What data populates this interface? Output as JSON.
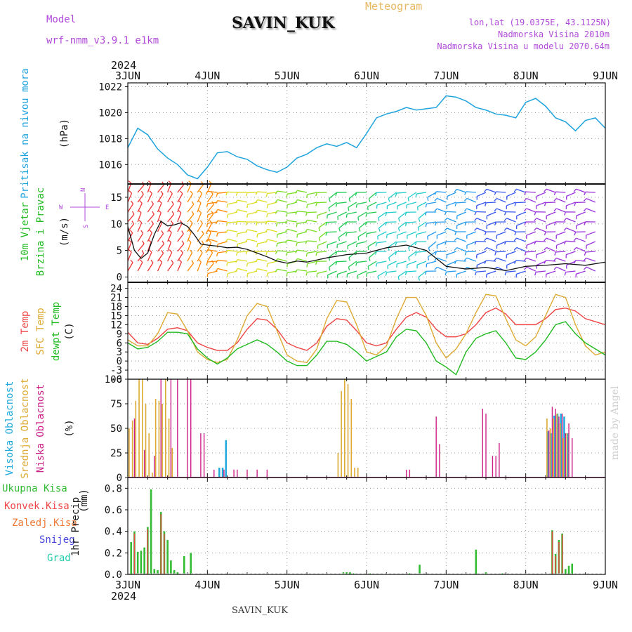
{
  "header": {
    "model_label": "Model",
    "model_name": "wrf-nmm_v3.9.1  e1km",
    "station": "SAVIN_KUK",
    "meteogram": "Meteogram",
    "lonlat": "lon,lat (19.0375E, 43.1125N)",
    "elevation": "Nadmorska Visina 2010m",
    "model_elevation": "Nadmorska Visina u modelu 2070.64m"
  },
  "footer": {
    "station": "SAVIN_KUK",
    "credit": "made by Angel"
  },
  "colors": {
    "pressure": "#1ea3dd",
    "wind_label": "#22bb22",
    "temp": "#ee4444",
    "sfc": "#ddaa33",
    "dewpt": "#22bb22",
    "high": "#22aadd",
    "mid": "#ddaa33",
    "low": "#cc2288",
    "precip": "#33bb33",
    "conv": "#ee4444",
    "frz": "#ee7733",
    "snow": "#4444dd",
    "hail": "#22ccaa",
    "header_purple": "#b04ad8",
    "title_orange": "#e8b860"
  },
  "chart_data": [
    {
      "type": "line",
      "panel": "pressure",
      "ylabel_main": "Pritisak na nivou mora",
      "unit": "(hPa)",
      "ylim": [
        1014.5,
        1022.3
      ],
      "yticks": [
        1016,
        1018,
        1020,
        1022
      ],
      "year": "2024",
      "xticks": [
        "3JUN",
        "4JUN",
        "5JUN",
        "6JUN",
        "7JUN",
        "8JUN",
        "9JUN"
      ],
      "x_hours": [
        0,
        3,
        6,
        9,
        12,
        15,
        18,
        21,
        24,
        27,
        30,
        33,
        36,
        39,
        42,
        45,
        48,
        51,
        54,
        57,
        60,
        63,
        66,
        69,
        72,
        75,
        78,
        81,
        84,
        87,
        90,
        93,
        96,
        99,
        102,
        105,
        108,
        111,
        114,
        117,
        120,
        123,
        126,
        129,
        132,
        135,
        138,
        141,
        144
      ],
      "values": [
        1017.3,
        1018.8,
        1018.3,
        1017.2,
        1016.5,
        1016.0,
        1015.2,
        1014.9,
        1015.8,
        1016.9,
        1017.0,
        1016.6,
        1016.4,
        1015.9,
        1015.6,
        1015.4,
        1015.8,
        1016.5,
        1016.8,
        1017.3,
        1017.6,
        1017.4,
        1017.7,
        1017.3,
        1018.4,
        1019.6,
        1019.9,
        1020.1,
        1020.4,
        1020.2,
        1020.3,
        1020.4,
        1021.3,
        1021.2,
        1020.9,
        1020.4,
        1020.2,
        1019.9,
        1019.8,
        1019.6,
        1020.8,
        1021.1,
        1020.5,
        1019.6,
        1019.3,
        1018.6,
        1019.4,
        1019.6,
        1018.8
      ]
    },
    {
      "type": "line",
      "panel": "wind",
      "ylabel_main": "10m Vjetar",
      "ylabel_sub": "Brzina i Pravac",
      "unit": "(m/s)",
      "compass": {
        "north": "N",
        "west": "W",
        "east": "E",
        "south": "S"
      },
      "ylim": [
        -1,
        17.5
      ],
      "yticks": [
        0,
        5,
        10,
        15
      ],
      "x_hours": [
        0,
        2,
        4,
        6,
        8,
        10,
        12,
        14,
        16,
        18,
        20,
        22,
        24,
        27,
        30,
        33,
        36,
        39,
        42,
        45,
        48,
        51,
        54,
        57,
        60,
        66,
        72,
        78,
        84,
        90,
        96,
        102,
        108,
        114,
        120,
        126,
        132,
        138,
        144
      ],
      "values": [
        9.5,
        5.0,
        3.5,
        4.5,
        8.0,
        10.5,
        9.6,
        9.8,
        10.2,
        9.5,
        8.0,
        6.2,
        6.0,
        5.8,
        5.5,
        5.6,
        5.2,
        4.5,
        3.8,
        3.0,
        2.6,
        3.0,
        2.8,
        3.2,
        3.6,
        4.2,
        4.5,
        5.5,
        6.0,
        5.0,
        2.0,
        1.5,
        1.8,
        1.2,
        2.0,
        2.2,
        2.5,
        2.2,
        2.8
      ]
    },
    {
      "type": "line",
      "panel": "temperature",
      "series_labels": [
        "2m Temp",
        "SFC Temp",
        "dewpt Temp"
      ],
      "unit": "(C)",
      "ylim": [
        -6,
        26
      ],
      "yticks": [
        -6,
        -3,
        0,
        3,
        6,
        9,
        12,
        15,
        18,
        21,
        24
      ],
      "x_hours": [
        0,
        3,
        6,
        9,
        12,
        15,
        18,
        21,
        24,
        27,
        30,
        33,
        36,
        39,
        42,
        45,
        48,
        51,
        54,
        57,
        60,
        63,
        66,
        69,
        72,
        75,
        78,
        81,
        84,
        87,
        90,
        93,
        96,
        99,
        102,
        105,
        108,
        111,
        114,
        117,
        120,
        123,
        126,
        129,
        132,
        135,
        138,
        141,
        144
      ],
      "series": [
        {
          "name": "2m Temp",
          "values": [
            9.5,
            6,
            5.5,
            7.5,
            10.5,
            11,
            10,
            6,
            4.5,
            3.5,
            3.5,
            6,
            10.5,
            14,
            13.5,
            10.5,
            6,
            4.5,
            3.5,
            6,
            11.5,
            14,
            13.5,
            10,
            6,
            5,
            6,
            10.5,
            14.5,
            16,
            14.5,
            10.5,
            8,
            8,
            9,
            12,
            16,
            17.5,
            15.5,
            12,
            12,
            12,
            14,
            17,
            17.5,
            16.5,
            14,
            13,
            12
          ]
        },
        {
          "name": "SFC Temp",
          "values": [
            7,
            5,
            5,
            9,
            16,
            15.5,
            10,
            3,
            0.5,
            -0.5,
            0.5,
            7,
            15,
            19,
            18,
            10,
            2,
            0,
            -0.5,
            4,
            14,
            20,
            19.5,
            12,
            3,
            2,
            5,
            14,
            21,
            21,
            15,
            6,
            1,
            4,
            9,
            16,
            22,
            21.5,
            14,
            7,
            5,
            8,
            15,
            22,
            21,
            12,
            5,
            2,
            3
          ]
        },
        {
          "name": "dewpt Temp",
          "values": [
            6,
            4,
            4.5,
            6.5,
            9.5,
            9.5,
            9,
            4,
            1,
            -1,
            1,
            4,
            5.5,
            7,
            5.5,
            3,
            0,
            -1.5,
            -1.5,
            2,
            6.5,
            6.5,
            5.5,
            3,
            0,
            1.5,
            3,
            8,
            10.5,
            10,
            6,
            0,
            -2,
            -4.5,
            3,
            7.5,
            9,
            10,
            6,
            1,
            0.5,
            3,
            7,
            12,
            13,
            9,
            6,
            4,
            2
          ]
        }
      ]
    },
    {
      "type": "bar",
      "panel": "cloud",
      "series_labels": [
        "Visoka Oblacnost",
        "Srednja Oblacnost",
        "Niska Oblacnost"
      ],
      "unit": "(%)",
      "ylim": [
        0,
        100
      ],
      "yticks": [
        0,
        25,
        50,
        75,
        100
      ],
      "series": [
        {
          "name": "Visoka Oblacnost",
          "x_hours": [
            27,
            28,
            29,
            126,
            127,
            128,
            129,
            130,
            131,
            132
          ],
          "values": [
            10,
            10,
            38,
            47,
            45,
            63,
            65,
            65,
            62,
            45
          ]
        },
        {
          "name": "Srednja Oblacnost",
          "x_hours": [
            1,
            2,
            3,
            4,
            5,
            6,
            7,
            8,
            9,
            10,
            11,
            12,
            13,
            14,
            64,
            65,
            66,
            67,
            68,
            69,
            70,
            127,
            128,
            129,
            130,
            131,
            132,
            133
          ],
          "values": [
            50,
            58,
            78,
            100,
            100,
            75,
            45,
            5,
            80,
            78,
            75,
            100,
            60,
            30,
            25,
            88,
            100,
            95,
            80,
            10,
            10,
            60,
            50,
            60,
            65,
            55,
            40,
            45
          ]
        },
        {
          "name": "Niska Oblacnost",
          "x_hours": [
            2,
            5,
            8,
            10,
            13,
            15,
            18,
            19,
            22,
            23,
            26,
            29,
            32,
            33,
            36,
            39,
            42,
            84,
            85,
            93,
            94,
            107,
            108,
            110,
            111,
            112,
            127,
            128,
            129,
            130,
            131,
            132,
            133,
            134
          ],
          "values": [
            60,
            28,
            22,
            100,
            100,
            100,
            100,
            100,
            45,
            45,
            8,
            8,
            8,
            8,
            8,
            8,
            8,
            8,
            8,
            62,
            34,
            70,
            65,
            22,
            22,
            35,
            48,
            72,
            70,
            62,
            65,
            45,
            55,
            40
          ]
        }
      ]
    },
    {
      "type": "bar",
      "panel": "precipitation",
      "series_labels": [
        "Ukupna Kisa",
        "Konvek.Kisa",
        "Zaledj.Kisa",
        "Snijeg",
        "Grad"
      ],
      "ylabel_main": "1hr Precip",
      "unit": "(mm)",
      "ylim": [
        0,
        0.9
      ],
      "yticks": [
        0,
        0.2,
        0.4,
        0.6,
        0.8
      ],
      "series": [
        {
          "name": "Ukupna Kisa",
          "x_hours": [
            1,
            2,
            3,
            4,
            5,
            6,
            7,
            8,
            9,
            10,
            11,
            12,
            13,
            14,
            15,
            17,
            19,
            65,
            66,
            67,
            68,
            73,
            85,
            88,
            105,
            108,
            113,
            128,
            129,
            130,
            131,
            132,
            133,
            134,
            135
          ],
          "values": [
            0.3,
            0.4,
            0.21,
            0.22,
            0.25,
            0.44,
            0.79,
            0.05,
            0.04,
            0.58,
            0.4,
            0.32,
            0.13,
            0.04,
            0.02,
            0.17,
            0.2,
            0.02,
            0.02,
            0.02,
            0.01,
            0.01,
            0.01,
            0.09,
            0.23,
            0.02,
            0.01,
            0.41,
            0.19,
            0.32,
            0.38,
            0.05,
            0.08,
            0.1,
            0.01
          ]
        },
        {
          "name": "Konvek.Kisa",
          "x_hours": [
            2,
            6,
            10,
            11,
            128,
            129,
            130,
            131
          ],
          "values": [
            0.38,
            0.42,
            0.56,
            0.38,
            0.4,
            0.17,
            0.3,
            0.37
          ]
        },
        {
          "name": "Zaledj.Kisa",
          "x_hours": [],
          "values": []
        },
        {
          "name": "Snijeg",
          "x_hours": [],
          "values": []
        },
        {
          "name": "Grad",
          "x_hours": [],
          "values": []
        }
      ]
    }
  ]
}
